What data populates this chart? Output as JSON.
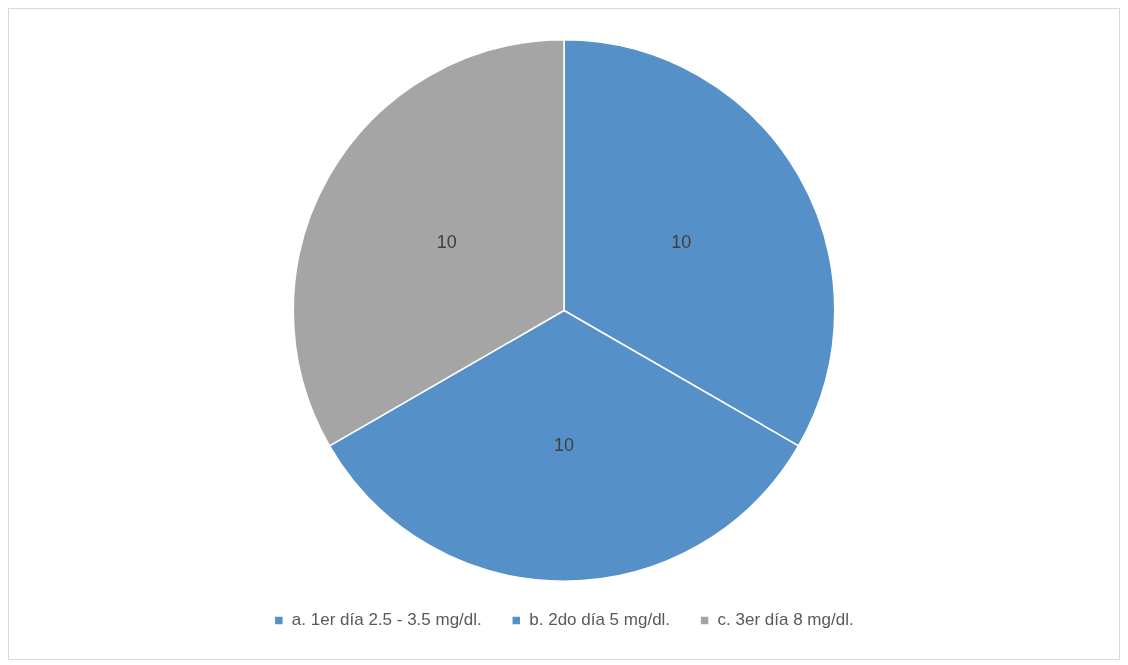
{
  "chart_data": {
    "type": "pie",
    "categories": [
      "a. 1er día 2.5 - 3.5 mg/dl.",
      "b. 2do día 5 mg/dl.",
      "c. 3er día 8 mg/dl."
    ],
    "values": [
      10,
      10,
      10
    ],
    "colors": [
      "#5590c8",
      "#5590c8",
      "#a5a5a5"
    ],
    "data_labels": true,
    "legend": "bottom"
  }
}
